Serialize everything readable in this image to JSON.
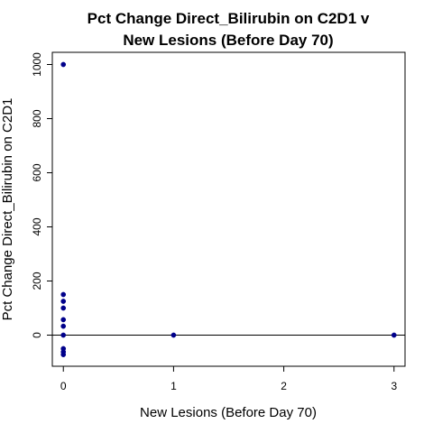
{
  "chart_data": {
    "type": "scatter",
    "title_line1": "Pct Change Direct_Bilirubin on C2D1 v",
    "title_line2": "New Lesions (Before Day 70)",
    "xlabel": "New Lesions (Before Day 70)",
    "ylabel": "Pct Change Direct_Bilirubin on C2D1",
    "xlim": [
      -0.1,
      3.1
    ],
    "ylim": [
      -115,
      1045
    ],
    "x_ticks": [
      0,
      1,
      2,
      3
    ],
    "y_ticks": [
      0,
      200,
      400,
      600,
      800,
      1000
    ],
    "reference_line_y": 0,
    "point_color": "#00008B",
    "points": [
      {
        "x": 0,
        "y": 1000
      },
      {
        "x": 0,
        "y": 150
      },
      {
        "x": 0,
        "y": 125
      },
      {
        "x": 0,
        "y": 100
      },
      {
        "x": 0,
        "y": 57
      },
      {
        "x": 0,
        "y": 33
      },
      {
        "x": 0,
        "y": 0
      },
      {
        "x": 0,
        "y": -50
      },
      {
        "x": 0,
        "y": -62
      },
      {
        "x": 0,
        "y": -72
      },
      {
        "x": 1,
        "y": 0
      },
      {
        "x": 3,
        "y": 0
      }
    ]
  }
}
